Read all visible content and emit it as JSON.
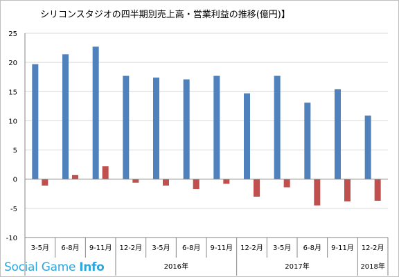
{
  "chart_data": {
    "type": "bar",
    "title": "シリコンスタジオの四半期別売上高・営業利益の推移(億円)】",
    "categories": [
      "3-5月",
      "6-8月",
      "9-11月",
      "12-2月",
      "3-5月",
      "6-8月",
      "9-11月",
      "12-2月",
      "3-5月",
      "6-8月",
      "9-11月",
      "12-2月"
    ],
    "groups": [
      {
        "label": "2016年",
        "start": 3,
        "end": 6
      },
      {
        "label": "2017年",
        "start": 7,
        "end": 10
      },
      {
        "label": "2018年",
        "start": 11,
        "end": 11
      }
    ],
    "series": [
      {
        "values": [
          19.7,
          21.4,
          22.7,
          17.7,
          17.4,
          17.1,
          17.7,
          14.7,
          17.7,
          13.1,
          15.4,
          10.9
        ],
        "color": "#4f81bd"
      },
      {
        "values": [
          -1.1,
          0.7,
          2.2,
          -0.6,
          -1.1,
          -1.7,
          -0.8,
          -3.0,
          -1.4,
          -4.5,
          -3.8,
          -3.7
        ],
        "color": "#c0504d"
      }
    ],
    "ylim": [
      -10,
      25
    ],
    "yticks": [
      "25",
      "20",
      "15",
      "10",
      "5",
      "0",
      "-5",
      "-10"
    ],
    "grid": true
  },
  "watermark": {
    "brand": "Social Game ",
    "brand_bold": "Info",
    "color": "#2fa6dc"
  }
}
